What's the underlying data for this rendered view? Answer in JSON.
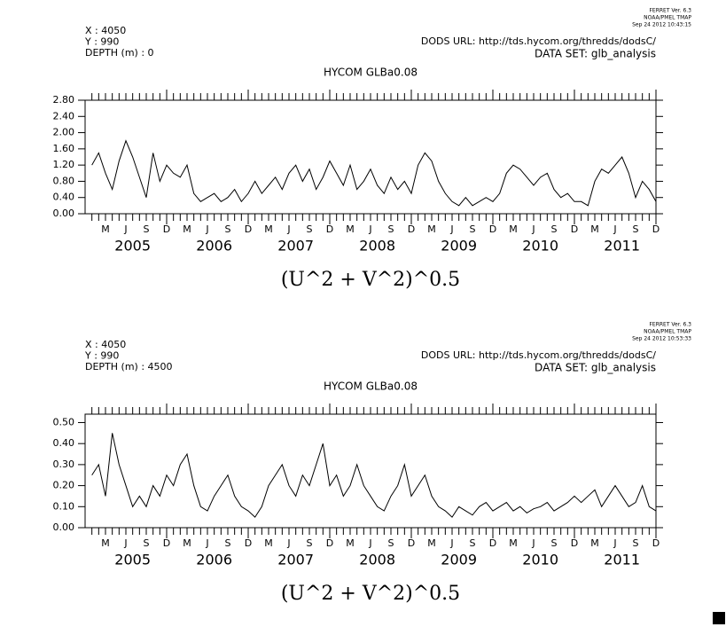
{
  "chart_data": [
    {
      "type": "line",
      "stamp": [
        "FERRET Ver. 6.3",
        "NOAA/PMEL TMAP",
        "Sep 24 2012 10:43:15"
      ],
      "header": [
        "X : 4050",
        "Y : 990",
        "DEPTH (m) : 0"
      ],
      "url": "DODS URL: http://tds.hycom.org/thredds/dodsC/",
      "dataset": "DATA SET: glb_analysis",
      "title": "HYCOM GLBa0.08",
      "xlabel": "(U^2 + V^2)^0.5",
      "color": "#000000",
      "xlim": [
        "2004-12",
        "2011-12"
      ],
      "ylim": [
        0,
        2.8
      ],
      "yticks": [
        {
          "value": 0,
          "label": "0.00"
        },
        {
          "value": 0.4,
          "label": "0.40"
        },
        {
          "value": 0.8,
          "label": "0.80"
        },
        {
          "value": 1.2,
          "label": "1.20"
        },
        {
          "value": 1.6,
          "label": "1.60"
        },
        {
          "value": 2.0,
          "label": "2.00"
        },
        {
          "value": 2.4,
          "label": "2.40"
        },
        {
          "value": 2.8,
          "label": "2.80"
        }
      ],
      "xticks": [
        {
          "value": "2005-03",
          "label": "M"
        },
        {
          "value": "2005-06",
          "label": "J"
        },
        {
          "value": "2005-09",
          "label": "S"
        },
        {
          "value": "2005-12",
          "label": "D"
        },
        {
          "value": "2006-03",
          "label": "M"
        },
        {
          "value": "2006-06",
          "label": "J"
        },
        {
          "value": "2006-09",
          "label": "S"
        },
        {
          "value": "2006-12",
          "label": "D"
        },
        {
          "value": "2007-03",
          "label": "M"
        },
        {
          "value": "2007-06",
          "label": "J"
        },
        {
          "value": "2007-09",
          "label": "S"
        },
        {
          "value": "2007-12",
          "label": "D"
        },
        {
          "value": "2008-03",
          "label": "M"
        },
        {
          "value": "2008-06",
          "label": "J"
        },
        {
          "value": "2008-09",
          "label": "S"
        },
        {
          "value": "2008-12",
          "label": "D"
        },
        {
          "value": "2009-03",
          "label": "M"
        },
        {
          "value": "2009-06",
          "label": "J"
        },
        {
          "value": "2009-09",
          "label": "S"
        },
        {
          "value": "2009-12",
          "label": "D"
        },
        {
          "value": "2010-03",
          "label": "M"
        },
        {
          "value": "2010-06",
          "label": "J"
        },
        {
          "value": "2010-09",
          "label": "S"
        },
        {
          "value": "2010-12",
          "label": "D"
        },
        {
          "value": "2011-03",
          "label": "M"
        },
        {
          "value": "2011-06",
          "label": "J"
        },
        {
          "value": "2011-09",
          "label": "S"
        },
        {
          "value": "2011-12",
          "label": "D"
        }
      ],
      "year_labels": [
        {
          "value": "2005-07",
          "label": "2005"
        },
        {
          "value": "2006-07",
          "label": "2006"
        },
        {
          "value": "2007-07",
          "label": "2007"
        },
        {
          "value": "2008-07",
          "label": "2008"
        },
        {
          "value": "2009-07",
          "label": "2009"
        },
        {
          "value": "2010-07",
          "label": "2010"
        },
        {
          "value": "2011-07",
          "label": "2011"
        }
      ],
      "x": [
        "2005-01",
        "2005-02",
        "2005-03",
        "2005-04",
        "2005-05",
        "2005-06",
        "2005-07",
        "2005-08",
        "2005-09",
        "2005-10",
        "2005-11",
        "2005-12",
        "2006-01",
        "2006-02",
        "2006-03",
        "2006-04",
        "2006-05",
        "2006-06",
        "2006-07",
        "2006-08",
        "2006-09",
        "2006-10",
        "2006-11",
        "2006-12",
        "2007-01",
        "2007-02",
        "2007-03",
        "2007-04",
        "2007-05",
        "2007-06",
        "2007-07",
        "2007-08",
        "2007-09",
        "2007-10",
        "2007-11",
        "2007-12",
        "2008-01",
        "2008-02",
        "2008-03",
        "2008-04",
        "2008-05",
        "2008-06",
        "2008-07",
        "2008-08",
        "2008-09",
        "2008-10",
        "2008-11",
        "2008-12",
        "2009-01",
        "2009-02",
        "2009-03",
        "2009-04",
        "2009-05",
        "2009-06",
        "2009-07",
        "2009-08",
        "2009-09",
        "2009-10",
        "2009-11",
        "2009-12",
        "2010-01",
        "2010-02",
        "2010-03",
        "2010-04",
        "2010-05",
        "2010-06",
        "2010-07",
        "2010-08",
        "2010-09",
        "2010-10",
        "2010-11",
        "2010-12",
        "2011-01",
        "2011-02",
        "2011-03",
        "2011-04",
        "2011-05",
        "2011-06",
        "2011-07",
        "2011-08",
        "2011-09",
        "2011-10",
        "2011-11",
        "2011-12"
      ],
      "values": [
        1.2,
        1.5,
        1.0,
        0.6,
        1.3,
        1.8,
        1.4,
        0.9,
        0.4,
        1.5,
        0.8,
        1.2,
        1.0,
        0.9,
        1.2,
        0.5,
        0.3,
        0.4,
        0.5,
        0.3,
        0.4,
        0.6,
        0.3,
        0.5,
        0.8,
        0.5,
        0.7,
        0.9,
        0.6,
        1.0,
        1.2,
        0.8,
        1.1,
        0.6,
        0.9,
        1.3,
        1.0,
        0.7,
        1.2,
        0.6,
        0.8,
        1.1,
        0.7,
        0.5,
        0.9,
        0.6,
        0.8,
        0.5,
        1.2,
        1.5,
        1.3,
        0.8,
        0.5,
        0.3,
        0.2,
        0.4,
        0.2,
        0.3,
        0.4,
        0.3,
        0.5,
        1.0,
        1.2,
        1.1,
        0.9,
        0.7,
        0.9,
        1.0,
        0.6,
        0.4,
        0.5,
        0.3,
        0.3,
        0.2,
        0.8,
        1.1,
        1.0,
        1.2,
        1.4,
        1.0,
        0.4,
        0.8,
        0.6,
        0.3
      ]
    },
    {
      "type": "line",
      "stamp": [
        "FERRET Ver. 6.3",
        "NOAA/PMEL TMAP",
        "Sep 24 2012 10:53:33"
      ],
      "header": [
        "X : 4050",
        "Y : 990",
        "DEPTH (m) : 4500"
      ],
      "url": "DODS URL: http://tds.hycom.org/thredds/dodsC/",
      "dataset": "DATA SET: glb_analysis",
      "title": "HYCOM GLBa0.08",
      "xlabel": "(U^2 + V^2)^0.5",
      "color": "#000000",
      "xlim": [
        "2004-12",
        "2011-12"
      ],
      "ylim": [
        0,
        0.54
      ],
      "yticks": [
        {
          "value": 0,
          "label": "0.00"
        },
        {
          "value": 0.1,
          "label": "0.10"
        },
        {
          "value": 0.2,
          "label": "0.20"
        },
        {
          "value": 0.3,
          "label": "0.30"
        },
        {
          "value": 0.4,
          "label": "0.40"
        },
        {
          "value": 0.5,
          "label": "0.50"
        }
      ],
      "xticks": [
        {
          "value": "2005-03",
          "label": "M"
        },
        {
          "value": "2005-06",
          "label": "J"
        },
        {
          "value": "2005-09",
          "label": "S"
        },
        {
          "value": "2005-12",
          "label": "D"
        },
        {
          "value": "2006-03",
          "label": "M"
        },
        {
          "value": "2006-06",
          "label": "J"
        },
        {
          "value": "2006-09",
          "label": "S"
        },
        {
          "value": "2006-12",
          "label": "D"
        },
        {
          "value": "2007-03",
          "label": "M"
        },
        {
          "value": "2007-06",
          "label": "J"
        },
        {
          "value": "2007-09",
          "label": "S"
        },
        {
          "value": "2007-12",
          "label": "D"
        },
        {
          "value": "2008-03",
          "label": "M"
        },
        {
          "value": "2008-06",
          "label": "J"
        },
        {
          "value": "2008-09",
          "label": "S"
        },
        {
          "value": "2008-12",
          "label": "D"
        },
        {
          "value": "2009-03",
          "label": "M"
        },
        {
          "value": "2009-06",
          "label": "J"
        },
        {
          "value": "2009-09",
          "label": "S"
        },
        {
          "value": "2009-12",
          "label": "D"
        },
        {
          "value": "2010-03",
          "label": "M"
        },
        {
          "value": "2010-06",
          "label": "J"
        },
        {
          "value": "2010-09",
          "label": "S"
        },
        {
          "value": "2010-12",
          "label": "D"
        },
        {
          "value": "2011-03",
          "label": "M"
        },
        {
          "value": "2011-06",
          "label": "J"
        },
        {
          "value": "2011-09",
          "label": "S"
        },
        {
          "value": "2011-12",
          "label": "D"
        }
      ],
      "year_labels": [
        {
          "value": "2005-07",
          "label": "2005"
        },
        {
          "value": "2006-07",
          "label": "2006"
        },
        {
          "value": "2007-07",
          "label": "2007"
        },
        {
          "value": "2008-07",
          "label": "2008"
        },
        {
          "value": "2009-07",
          "label": "2009"
        },
        {
          "value": "2010-07",
          "label": "2010"
        },
        {
          "value": "2011-07",
          "label": "2011"
        }
      ],
      "x": [
        "2005-01",
        "2005-02",
        "2005-03",
        "2005-04",
        "2005-05",
        "2005-06",
        "2005-07",
        "2005-08",
        "2005-09",
        "2005-10",
        "2005-11",
        "2005-12",
        "2006-01",
        "2006-02",
        "2006-03",
        "2006-04",
        "2006-05",
        "2006-06",
        "2006-07",
        "2006-08",
        "2006-09",
        "2006-10",
        "2006-11",
        "2006-12",
        "2007-01",
        "2007-02",
        "2007-03",
        "2007-04",
        "2007-05",
        "2007-06",
        "2007-07",
        "2007-08",
        "2007-09",
        "2007-10",
        "2007-11",
        "2007-12",
        "2008-01",
        "2008-02",
        "2008-03",
        "2008-04",
        "2008-05",
        "2008-06",
        "2008-07",
        "2008-08",
        "2008-09",
        "2008-10",
        "2008-11",
        "2008-12",
        "2009-01",
        "2009-02",
        "2009-03",
        "2009-04",
        "2009-05",
        "2009-06",
        "2009-07",
        "2009-08",
        "2009-09",
        "2009-10",
        "2009-11",
        "2009-12",
        "2010-01",
        "2010-02",
        "2010-03",
        "2010-04",
        "2010-05",
        "2010-06",
        "2010-07",
        "2010-08",
        "2010-09",
        "2010-10",
        "2010-11",
        "2010-12",
        "2011-01",
        "2011-02",
        "2011-03",
        "2011-04",
        "2011-05",
        "2011-06",
        "2011-07",
        "2011-08",
        "2011-09",
        "2011-10",
        "2011-11",
        "2011-12"
      ],
      "values": [
        0.25,
        0.3,
        0.15,
        0.45,
        0.3,
        0.2,
        0.1,
        0.15,
        0.1,
        0.2,
        0.15,
        0.25,
        0.2,
        0.3,
        0.35,
        0.2,
        0.1,
        0.08,
        0.15,
        0.2,
        0.25,
        0.15,
        0.1,
        0.08,
        0.05,
        0.1,
        0.2,
        0.25,
        0.3,
        0.2,
        0.15,
        0.25,
        0.2,
        0.3,
        0.4,
        0.2,
        0.25,
        0.15,
        0.2,
        0.3,
        0.2,
        0.15,
        0.1,
        0.08,
        0.15,
        0.2,
        0.3,
        0.15,
        0.2,
        0.25,
        0.15,
        0.1,
        0.08,
        0.05,
        0.1,
        0.08,
        0.06,
        0.1,
        0.12,
        0.08,
        0.1,
        0.12,
        0.08,
        0.1,
        0.07,
        0.09,
        0.1,
        0.12,
        0.08,
        0.1,
        0.12,
        0.15,
        0.12,
        0.15,
        0.18,
        0.1,
        0.15,
        0.2,
        0.15,
        0.1,
        0.12,
        0.2,
        0.1,
        0.08
      ]
    }
  ]
}
